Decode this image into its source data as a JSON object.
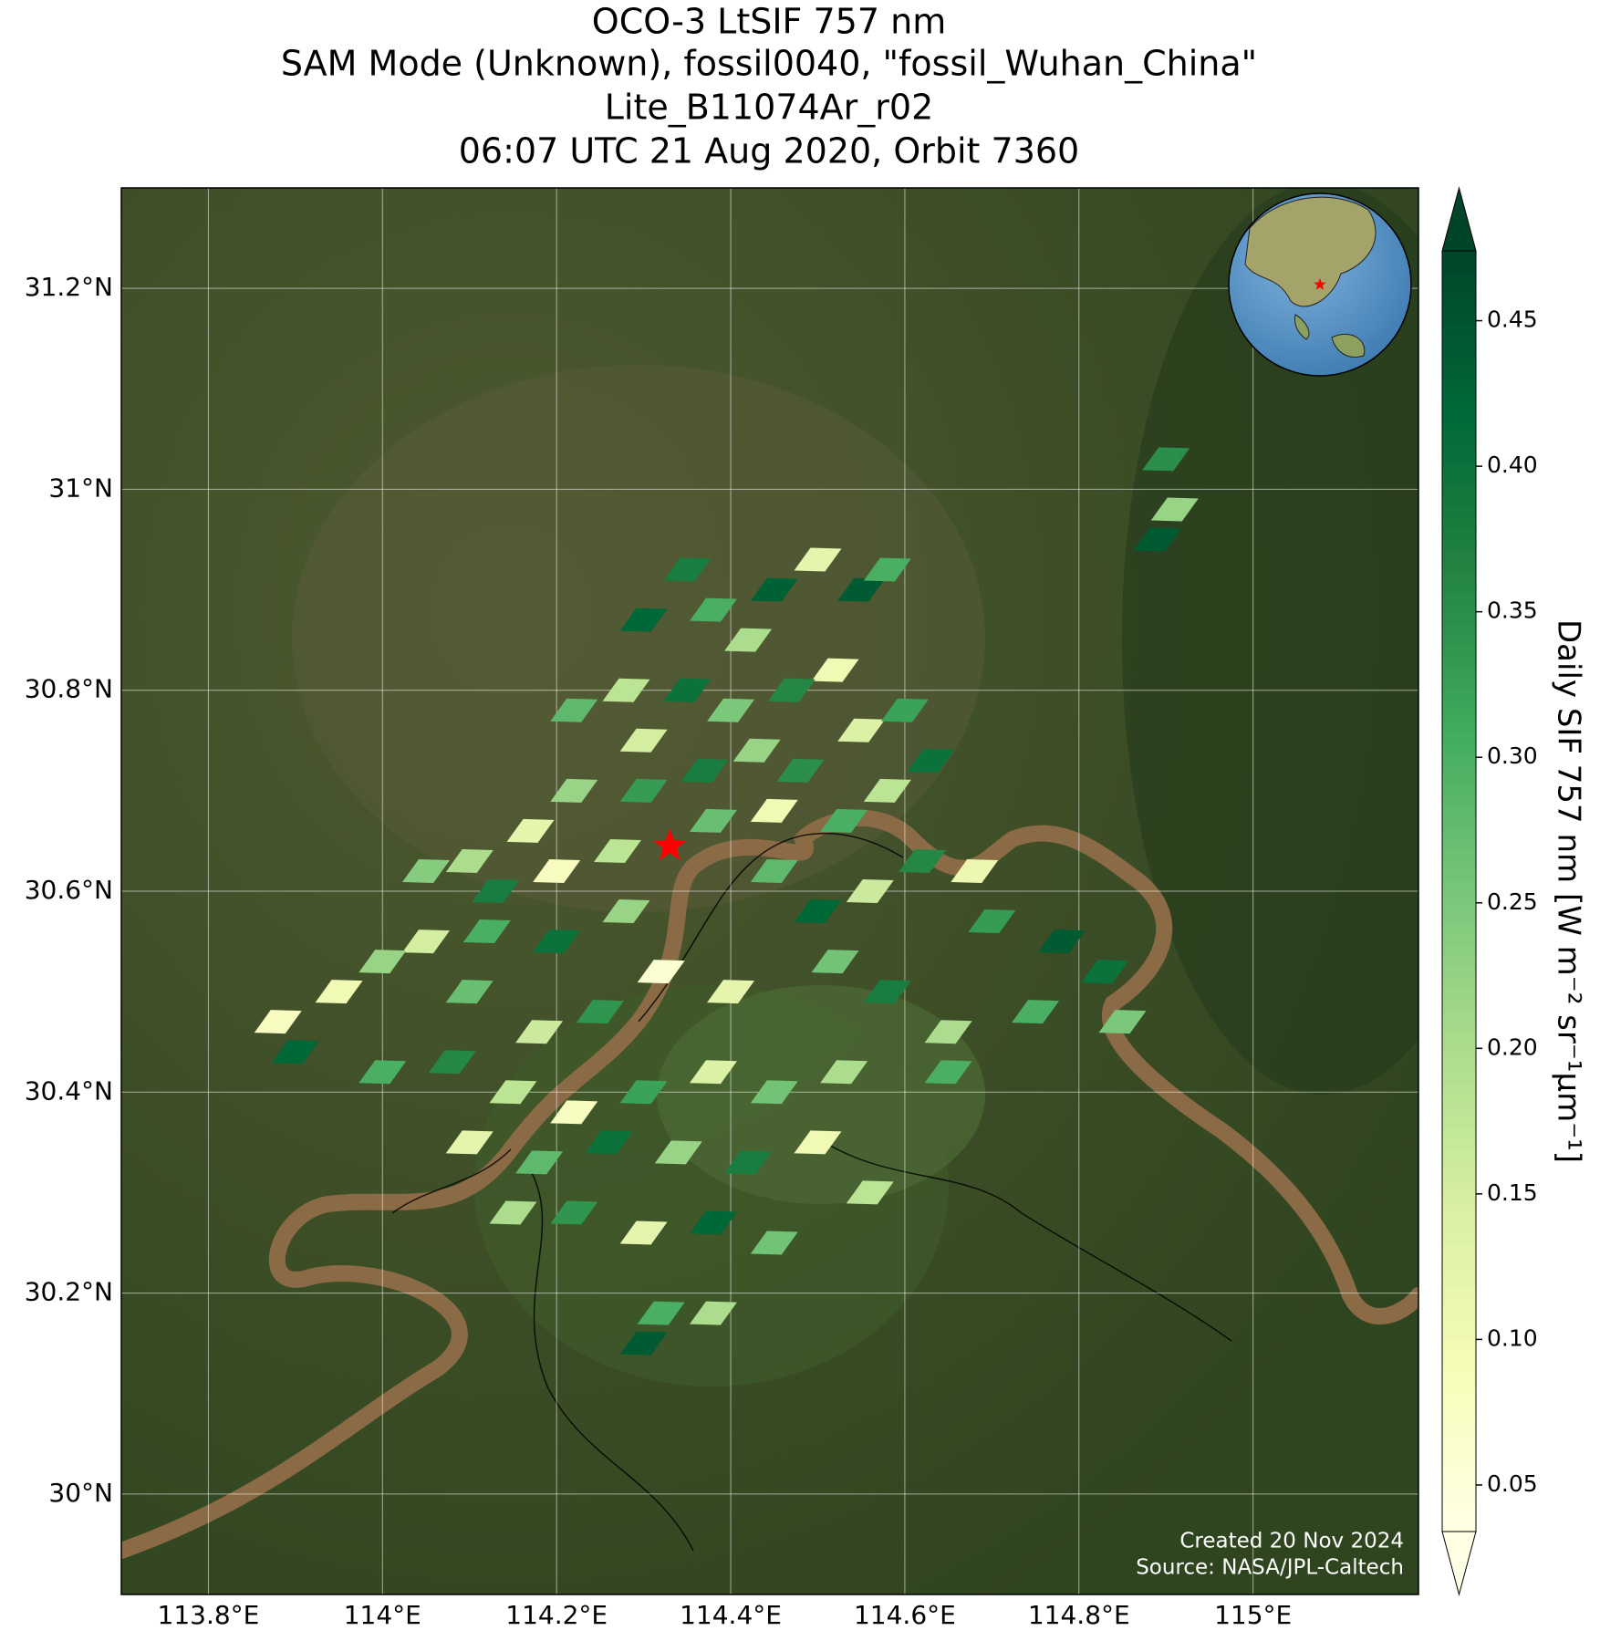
{
  "chart_data": {
    "type": "map",
    "title": [
      "OCO-3 LtSIF 757 nm",
      "SAM Mode (Unknown), fossil0040, \"fossil_Wuhan_China\"",
      "Lite_B11074Ar_r02",
      "06:07 UTC 21 Aug 2020, Orbit 7360"
    ],
    "xlim": [
      113.7,
      115.19
    ],
    "ylim": [
      29.9,
      31.3
    ],
    "xticks": [
      {
        "value": 113.8,
        "label": "113.8°E"
      },
      {
        "value": 114,
        "label": "114°E"
      },
      {
        "value": 114.2,
        "label": "114.2°E"
      },
      {
        "value": 114.4,
        "label": "114.4°E"
      },
      {
        "value": 114.6,
        "label": "114.6°E"
      },
      {
        "value": 114.8,
        "label": "114.8°E"
      },
      {
        "value": 115,
        "label": "115°E"
      }
    ],
    "yticks": [
      {
        "value": 30,
        "label": "30°N"
      },
      {
        "value": 30.2,
        "label": "30.2°N"
      },
      {
        "value": 30.4,
        "label": "30.4°N"
      },
      {
        "value": 30.6,
        "label": "30.6°N"
      },
      {
        "value": 30.8,
        "label": "30.8°N"
      },
      {
        "value": 31,
        "label": "31°N"
      },
      {
        "value": 31.2,
        "label": "31.2°N"
      }
    ],
    "grid": true,
    "target": {
      "lon": 114.33,
      "lat": 30.645,
      "color": "#ff0000"
    },
    "footprints": {
      "lon": [
        114.35,
        114.38,
        114.3,
        114.42,
        114.45,
        114.5,
        114.55,
        114.58,
        114.52,
        114.47,
        114.4,
        114.35,
        114.28,
        114.22,
        114.3,
        114.37,
        114.43,
        114.48,
        114.55,
        114.6,
        114.63,
        114.58,
        114.53,
        114.45,
        114.38,
        114.3,
        114.22,
        114.17,
        114.1,
        114.05,
        114.13,
        114.2,
        114.27,
        114.12,
        114.05,
        114.2,
        114.28,
        114.45,
        114.5,
        114.56,
        114.62,
        114.68,
        114.7,
        114.78,
        114.83,
        114.85,
        114.75,
        114.65,
        114.58,
        114.52,
        114.4,
        114.32,
        114.25,
        114.18,
        114.1,
        114.0,
        113.95,
        113.88,
        113.9,
        114.0,
        114.08,
        114.15,
        114.22,
        114.3,
        114.38,
        114.45,
        114.53,
        114.65,
        114.1,
        114.18,
        114.26,
        114.34,
        114.42,
        114.5,
        114.56,
        114.15,
        114.22,
        114.3,
        114.38,
        114.45,
        114.32,
        114.38,
        114.3,
        114.9,
        114.91,
        114.89
      ],
      "lat": [
        30.92,
        30.88,
        30.87,
        30.85,
        30.9,
        30.93,
        30.9,
        30.92,
        30.82,
        30.8,
        30.78,
        30.8,
        30.8,
        30.78,
        30.75,
        30.72,
        30.74,
        30.72,
        30.76,
        30.78,
        30.73,
        30.7,
        30.67,
        30.68,
        30.67,
        30.7,
        30.7,
        30.66,
        30.63,
        30.62,
        30.6,
        30.62,
        30.64,
        30.56,
        30.55,
        30.55,
        30.58,
        30.62,
        30.58,
        30.6,
        30.63,
        30.62,
        30.57,
        30.55,
        30.52,
        30.47,
        30.48,
        30.46,
        30.5,
        30.53,
        30.5,
        30.52,
        30.48,
        30.46,
        30.5,
        30.53,
        30.5,
        30.47,
        30.44,
        30.42,
        30.43,
        30.4,
        30.38,
        30.4,
        30.42,
        30.4,
        30.42,
        30.42,
        30.35,
        30.33,
        30.35,
        30.34,
        30.33,
        30.35,
        30.3,
        30.28,
        30.28,
        30.26,
        30.27,
        30.25,
        30.18,
        30.18,
        30.15,
        31.03,
        30.98,
        30.95
      ],
      "values": [
        0.38,
        0.3,
        0.42,
        0.2,
        0.43,
        0.12,
        0.44,
        0.3,
        0.1,
        0.36,
        0.25,
        0.4,
        0.18,
        0.28,
        0.15,
        0.38,
        0.22,
        0.35,
        0.14,
        0.32,
        0.4,
        0.18,
        0.3,
        0.1,
        0.27,
        0.33,
        0.22,
        0.12,
        0.2,
        0.24,
        0.38,
        0.08,
        0.18,
        0.3,
        0.15,
        0.4,
        0.22,
        0.28,
        0.42,
        0.16,
        0.36,
        0.11,
        0.33,
        0.44,
        0.4,
        0.25,
        0.3,
        0.2,
        0.38,
        0.26,
        0.12,
        0.06,
        0.34,
        0.16,
        0.27,
        0.22,
        0.1,
        0.08,
        0.42,
        0.3,
        0.36,
        0.18,
        0.08,
        0.32,
        0.14,
        0.26,
        0.2,
        0.3,
        0.12,
        0.28,
        0.4,
        0.22,
        0.38,
        0.1,
        0.18,
        0.2,
        0.34,
        0.12,
        0.42,
        0.26,
        0.3,
        0.2,
        0.44,
        0.35,
        0.22,
        0.44
      ]
    },
    "colorbar": {
      "label": "Daily SIF 757 nm [W m⁻² sr⁻¹µm⁻¹]",
      "cmap": "YlGn",
      "clim": [
        0.034,
        0.474
      ],
      "ticks": [
        0.05,
        {
          "value": 0.1,
          "label": "0.10"
        },
        0.15,
        {
          "value": 0.2,
          "label": "0.20"
        },
        0.25,
        {
          "value": 0.3,
          "label": "0.30"
        },
        0.35,
        {
          "value": 0.4,
          "label": "0.40"
        },
        0.45
      ]
    },
    "credits": [
      "Created 20 Nov 2024",
      "Source: NASA/JPL-Caltech"
    ]
  }
}
